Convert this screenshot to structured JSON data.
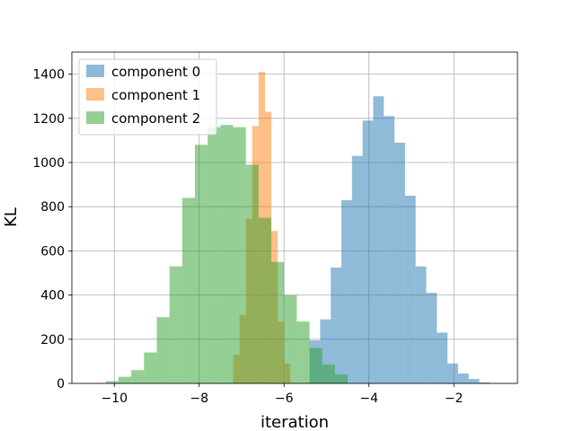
{
  "chart_data": {
    "type": "bar",
    "subtype": "overlapping-histogram",
    "xlabel": "iteration",
    "ylabel": "KL",
    "xlim": [
      -11.0,
      -0.5
    ],
    "ylim": [
      0,
      1500
    ],
    "xticks": [
      -10,
      -8,
      -6,
      -4,
      -2
    ],
    "xtick_labels": [
      "−10",
      "−8",
      "−6",
      "−4",
      "−2"
    ],
    "yticks": [
      0,
      200,
      400,
      600,
      800,
      1000,
      1200,
      1400
    ],
    "ytick_labels": [
      "0",
      "200",
      "400",
      "600",
      "800",
      "1000",
      "1200",
      "1400"
    ],
    "grid": true,
    "legend_position": "top-left",
    "bar_opacity": 0.5,
    "series": [
      {
        "name": "component 0",
        "color": "#1f77b4",
        "bin_edges": [
          -5.4,
          -5.15,
          -4.9,
          -4.65,
          -4.4,
          -4.15,
          -3.9,
          -3.65,
          -3.4,
          -3.15,
          -2.9,
          -2.65,
          -2.4,
          -2.15,
          -1.9,
          -1.65,
          -1.4,
          -1.15,
          -0.9
        ],
        "counts": [
          195,
          290,
          525,
          830,
          1030,
          1190,
          1300,
          1210,
          1090,
          850,
          530,
          410,
          230,
          90,
          45,
          20,
          5,
          0
        ]
      },
      {
        "name": "component 1",
        "color": "#ff7f0e",
        "bin_edges": [
          -7.2,
          -7.05,
          -6.9,
          -6.75,
          -6.6,
          -6.45,
          -6.3,
          -6.15,
          -6.0,
          -5.85
        ],
        "counts": [
          130,
          310,
          745,
          1165,
          1410,
          1230,
          690,
          280,
          90
        ]
      },
      {
        "name": "component 2",
        "color": "#2ca02c",
        "bin_edges": [
          -10.2,
          -9.9,
          -9.6,
          -9.3,
          -9.0,
          -8.7,
          -8.4,
          -8.1,
          -7.8,
          -7.5,
          -7.2,
          -6.9,
          -6.6,
          -6.3,
          -6.0,
          -5.7,
          -5.4,
          -5.1,
          -4.8,
          -4.5
        ],
        "counts": [
          10,
          30,
          60,
          140,
          300,
          530,
          840,
          1080,
          1160,
          1170,
          1160,
          990,
          750,
          550,
          400,
          280,
          160,
          85,
          40
        ]
      }
    ]
  }
}
